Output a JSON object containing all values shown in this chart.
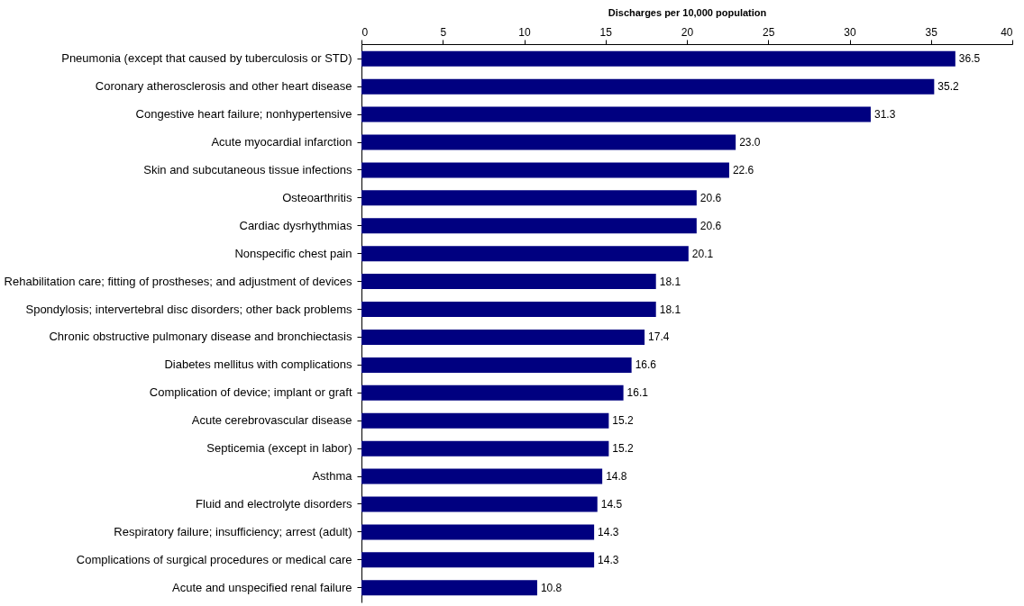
{
  "chart_data": {
    "type": "bar",
    "orientation": "horizontal",
    "xlabel": "Discharges per 10,000 population",
    "categories": [
      "Pneumonia (except that caused by tuberculosis or STD)",
      "Coronary atherosclerosis and other heart disease",
      "Congestive heart failure; nonhypertensive",
      "Acute myocardial infarction",
      "Skin and subcutaneous tissue infections",
      "Osteoarthritis",
      "Cardiac dysrhythmias",
      "Nonspecific chest pain",
      "Rehabilitation care; fitting of prostheses; and adjustment of devices",
      "Spondylosis; intervertebral disc disorders; other back problems",
      "Chronic obstructive pulmonary disease and bronchiectasis",
      "Diabetes mellitus with complications",
      "Complication of device; implant or graft",
      "Acute cerebrovascular disease",
      "Septicemia (except in labor)",
      "Asthma",
      "Fluid and electrolyte disorders",
      "Respiratory failure; insufficiency; arrest (adult)",
      "Complications of surgical procedures or medical care",
      "Acute and unspecified renal failure"
    ],
    "values": [
      36.5,
      35.2,
      31.3,
      23.0,
      22.6,
      20.6,
      20.6,
      20.1,
      18.1,
      18.1,
      17.4,
      16.6,
      16.1,
      15.2,
      15.2,
      14.8,
      14.5,
      14.3,
      14.3,
      10.8
    ],
    "value_labels": [
      "36.5",
      "35.2",
      "31.3",
      "23.0",
      "22.6",
      "20.6",
      "20.6",
      "20.1",
      "18.1",
      "18.1",
      "17.4",
      "16.6",
      "16.1",
      "15.2",
      "15.2",
      "14.8",
      "14.5",
      "14.3",
      "14.3",
      "10.8"
    ],
    "color": "#000080",
    "xlim": [
      0,
      40
    ],
    "xticks": [
      0,
      5,
      10,
      15,
      20,
      25,
      30,
      35,
      40
    ],
    "grid": false
  }
}
